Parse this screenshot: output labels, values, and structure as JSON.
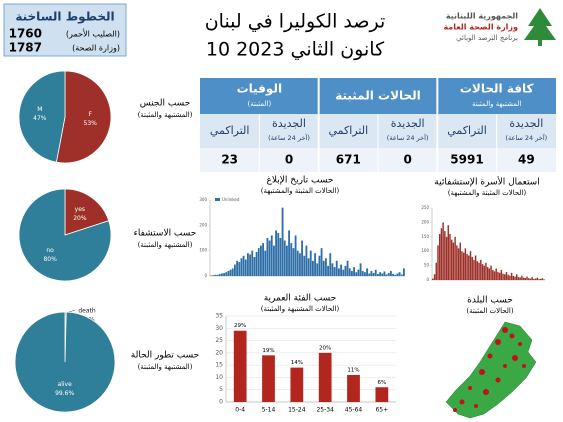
{
  "header": {
    "title": "ترصد الكوليرا في لبنان",
    "date": "10 كانون الثاني 2023",
    "logo": [
      "الجمهورية اللبنانية",
      "وزارة الصحة العامة",
      "برنامج الترصد الوبائي"
    ]
  },
  "hotlines": {
    "title": "الخطوط الساخنة",
    "rows": [
      {
        "number": "1760",
        "label": "(الصليب الأحمر)"
      },
      {
        "number": "1787",
        "label": "(وزارة الصحة)"
      }
    ]
  },
  "table": {
    "groups": [
      {
        "title": "كافة الحالات",
        "subtitle": "المشتبهة والمثبتة"
      },
      {
        "title": "الحالات المثبتة"
      },
      {
        "title": "الوفيات",
        "subtitle": "(المثبتة)"
      }
    ],
    "columns": [
      {
        "label": "الجديدة",
        "note": "(آخر 24 ساعة)"
      },
      {
        "label": "التراكمي"
      }
    ],
    "rows": [
      [
        49,
        5991
      ],
      [
        0,
        671
      ],
      [
        0,
        23
      ]
    ]
  },
  "map": {
    "title": "حسب البلدة",
    "subtitle": "(الحالات المثبتة)"
  },
  "chart_data": [
    {
      "type": "pie",
      "title": "حسب الجنس",
      "subtitle": "(المشتبهة والمثبتة)",
      "categories": [
        "F",
        "M"
      ],
      "values": [
        53,
        47
      ],
      "value_labels": [
        "53%",
        "47%"
      ],
      "colors": [
        "#9e3029",
        "#2f7f9a"
      ]
    },
    {
      "type": "pie",
      "title": "حسب الاستشفاء",
      "subtitle": "(المشتبهة والمثبتة)",
      "categories": [
        "yes",
        "no"
      ],
      "values": [
        20,
        80
      ],
      "value_labels": [
        "20%",
        "80%"
      ],
      "colors": [
        "#9e3029",
        "#2f7f9a"
      ]
    },
    {
      "type": "pie",
      "title": "حسب تطور الحالة",
      "subtitle": "(المشتبهة والمثبتة)",
      "categories": [
        "death",
        "alive"
      ],
      "values": [
        0.4,
        99.6
      ],
      "value_labels": [
        "0.4%",
        "99.6%"
      ],
      "colors": [
        "#9e3029",
        "#2f7f9a"
      ]
    },
    {
      "type": "bar",
      "title": "حسب تاريخ الإبلاغ",
      "subtitle": "(الحالات المثبتة والمشتبهة)",
      "series": [
        {
          "name": "Unlinked",
          "color": "#2f6fa8",
          "values": [
            2,
            3,
            5,
            4,
            8,
            10,
            12,
            15,
            20,
            25,
            30,
            45,
            60,
            55,
            70,
            80,
            65,
            90,
            85,
            100,
            75,
            95,
            110,
            120,
            130,
            100,
            150,
            140,
            160,
            120,
            180,
            170,
            150,
            270,
            140,
            120,
            180,
            130,
            110,
            160,
            100,
            90,
            140,
            80,
            120,
            70,
            100,
            60,
            90,
            50,
            80,
            110,
            60,
            70,
            40,
            90,
            50,
            35,
            60,
            30,
            45,
            25,
            40,
            60,
            30,
            20,
            35,
            15,
            25,
            50,
            20,
            15,
            30,
            10,
            20,
            12,
            25,
            8,
            15,
            10,
            18,
            6,
            12,
            20,
            8,
            5,
            10,
            15,
            6,
            30
          ]
        }
      ],
      "ylim": [
        0,
        300
      ],
      "yticks": [
        0,
        100,
        200,
        300
      ]
    },
    {
      "type": "bar",
      "title": "استعمال الأسرة الإستشفائية",
      "subtitle": "(الحالات المثبتة والمشتبهة)",
      "series": [
        {
          "color": "#9e3029",
          "values": [
            5,
            20,
            60,
            120,
            160,
            180,
            200,
            170,
            150,
            190,
            160,
            140,
            130,
            150,
            120,
            110,
            130,
            100,
            95,
            110,
            90,
            85,
            100,
            80,
            70,
            85,
            65,
            60,
            70,
            55,
            50,
            60,
            45,
            40,
            50,
            35,
            30,
            40,
            28,
            25,
            35,
            22,
            20,
            28,
            18,
            15,
            25,
            14,
            12,
            20,
            10,
            9,
            15,
            8,
            7,
            12,
            6,
            5,
            10,
            4,
            5,
            8,
            3,
            4,
            6,
            2
          ]
        }
      ],
      "ylim": [
        0,
        250
      ],
      "yticks": [
        0,
        50,
        100,
        150,
        200,
        250
      ]
    },
    {
      "type": "bar",
      "title": "حسب الفئة العمرية",
      "subtitle": "(الحالات المشتبهة والمثبتة)",
      "categories": [
        "0-4",
        "5-14",
        "15-24",
        "25-34",
        "45-64",
        "65+"
      ],
      "values": [
        29,
        19,
        14,
        20,
        11,
        6
      ],
      "value_labels": [
        "29%",
        "19%",
        "14%",
        "20%",
        "11%",
        "6%"
      ],
      "color": "#b3261e",
      "ylim": [
        0,
        35
      ],
      "yticks": [
        0,
        5,
        10,
        15,
        20,
        25,
        30,
        35
      ],
      "grid": true
    }
  ]
}
